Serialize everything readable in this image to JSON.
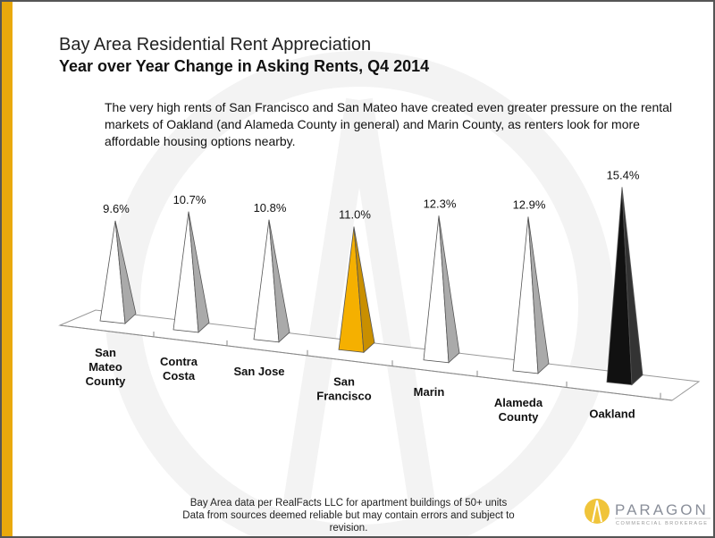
{
  "title": "Bay Area Residential Rent Appreciation",
  "subtitle": "Year over Year Change in Asking Rents, Q4 2014",
  "description": "The very high rents of San Francisco and San Mateo have created even greater pressure on the rental markets of Oakland (and Alameda County in general) and Marin County, as renters look for more affordable housing options nearby.",
  "footnote": "Bay Area data per RealFacts LLC for apartment buildings of 50+ units Data from sources deemed reliable but may contain errors and subject to revision.",
  "logo": {
    "name": "PARAGON",
    "tagline": "COMMERCIAL BROKERAGE"
  },
  "colors": {
    "accent": "#e9a90c",
    "highlight": "#f5b000",
    "oakland": "#111111",
    "default": "#ffffff"
  },
  "chart_data": {
    "type": "bar",
    "style": "3d-pyramid",
    "categories": [
      "San Mateo County",
      "Contra Costa",
      "San Jose",
      "San Francisco",
      "Marin",
      "Alameda County",
      "Oakland"
    ],
    "values": [
      9.6,
      10.7,
      10.8,
      11.0,
      12.3,
      12.9,
      15.4
    ],
    "data_labels": [
      "9.6%",
      "10.7%",
      "10.8%",
      "11.0%",
      "12.3%",
      "12.9%",
      "15.4%"
    ],
    "title": "",
    "xlabel": "",
    "ylabel": "",
    "grid": false
  }
}
